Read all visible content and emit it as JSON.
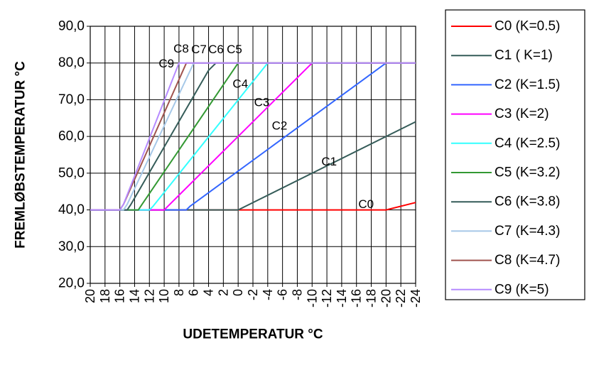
{
  "chart_data": {
    "type": "line",
    "title": "",
    "xlabel": "UDETEMPERATUR  °C",
    "ylabel": "FREMLØBSTEMPERATUR  °C",
    "xlim": [
      20,
      -24
    ],
    "ylim": [
      20,
      90
    ],
    "x_reversed": true,
    "grid": true,
    "legend_placement": "right",
    "x_ticks": [
      20,
      18,
      16,
      14,
      12,
      10,
      8,
      6,
      4,
      2,
      0,
      -2,
      -4,
      -6,
      -8,
      -10,
      -12,
      -14,
      -16,
      -18,
      -20,
      -22,
      -24
    ],
    "x_tick_labels": [
      "20",
      "18",
      "16",
      "14",
      "12",
      "10",
      "8",
      "6",
      "4",
      "2",
      "0",
      "-2",
      "-4",
      "-6",
      "-8",
      "-10",
      "-12",
      "-14",
      "-16",
      "-18",
      "-20",
      "-22",
      "-24"
    ],
    "y_ticks": [
      20,
      30,
      40,
      50,
      60,
      70,
      80,
      90
    ],
    "y_tick_labels": [
      "20,0",
      "30,0",
      "40,0",
      "50,0",
      "60,0",
      "70,0",
      "80,0",
      "90,0"
    ],
    "series": [
      {
        "name": "C0 (K=0.5)",
        "label": "C0",
        "color": "#ff0000",
        "points": [
          [
            20,
            40
          ],
          [
            -20,
            40
          ],
          [
            -24,
            42
          ]
        ],
        "label_at": [
          -17.3,
          41.6
        ]
      },
      {
        "name": "C1 ( K=1)",
        "label": "C1",
        "color": "#355c59",
        "points": [
          [
            20,
            40
          ],
          [
            0,
            40
          ],
          [
            -24,
            64
          ]
        ],
        "label_at": [
          -12.3,
          53.2
        ]
      },
      {
        "name": "C2 (K=1.5)",
        "label": "C2",
        "color": "#3366ff",
        "points": [
          [
            20,
            40
          ],
          [
            7,
            40
          ],
          [
            6.5,
            41
          ],
          [
            -20,
            80
          ],
          [
            -24,
            80
          ]
        ],
        "label_at": [
          -5.6,
          62.9
        ]
      },
      {
        "name": "C3 (K=2)",
        "label": "C3",
        "color": "#ff00ff",
        "points": [
          [
            20,
            40
          ],
          [
            10,
            40
          ],
          [
            9.5,
            41
          ],
          [
            -10,
            80
          ],
          [
            -24,
            80
          ]
        ],
        "label_at": [
          -3.2,
          69.3
        ]
      },
      {
        "name": "C4 (K=2.5)",
        "label": "C4",
        "color": "#33ffff",
        "points": [
          [
            20,
            40
          ],
          [
            12,
            40
          ],
          [
            11.5,
            41
          ],
          [
            -4,
            80
          ],
          [
            -24,
            80
          ]
        ],
        "label_at": [
          -0.3,
          74.3
        ]
      },
      {
        "name": "C5 (K=3.2)",
        "label": "C5",
        "color": "#339933",
        "points": [
          [
            20,
            40
          ],
          [
            13.5,
            40
          ],
          [
            13,
            41.5
          ],
          [
            0,
            80
          ],
          [
            -24,
            80
          ]
        ],
        "label_at": [
          0.5,
          83.7
        ]
      },
      {
        "name": "C6 (K=3.8)",
        "label": "C6",
        "color": "#355c59",
        "points": [
          [
            20,
            40
          ],
          [
            15,
            40
          ],
          [
            14.5,
            41.5
          ],
          [
            4,
            78
          ],
          [
            3,
            80
          ],
          [
            -24,
            80
          ]
        ],
        "label_at": [
          3.0,
          83.7
        ]
      },
      {
        "name": "C7 (K=4.3)",
        "label": "C7",
        "color": "#a6c8e8",
        "points": [
          [
            20,
            40
          ],
          [
            15.5,
            40
          ],
          [
            15,
            41.5
          ],
          [
            6,
            80
          ],
          [
            -24,
            80
          ]
        ],
        "label_at": [
          5.3,
          83.7
        ]
      },
      {
        "name": "C8 (K=4.7)",
        "label": "C8",
        "color": "#a0544f",
        "points": [
          [
            20,
            40
          ],
          [
            16,
            40
          ],
          [
            15.5,
            41.5
          ],
          [
            7,
            80
          ],
          [
            -24,
            80
          ]
        ],
        "label_at": [
          7.7,
          83.9
        ]
      },
      {
        "name": "C9 (K=5)",
        "label": "C9",
        "color": "#b68bff",
        "points": [
          [
            20,
            40
          ],
          [
            16,
            40
          ],
          [
            15.5,
            41.5
          ],
          [
            8,
            80
          ],
          [
            -24,
            80
          ]
        ],
        "label_at": [
          9.7,
          79.8
        ]
      }
    ]
  }
}
